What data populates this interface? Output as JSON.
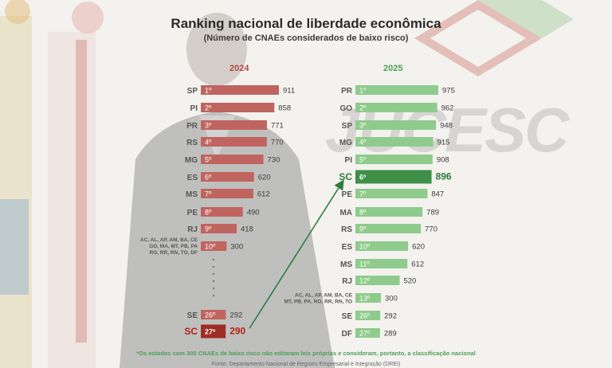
{
  "title": "Ranking nacional de liberdade econômica",
  "subtitle": "(Número de CNAEs considerados de baixo risco)",
  "logo_text": "JUCESC",
  "footnote": "*Os estados com 300 CNAEs de baixo risco não editaram leis próprias e consideram, portanto, a classificação nacional",
  "source": "Fonte: Departamento Nacional de Registro Empresarial e Integração (DREI)",
  "colors": {
    "left_bar": "#c0645f",
    "left_highlight": "#9e2d25",
    "right_bar": "#8fcb8c",
    "right_highlight": "#3f8f47",
    "arrow": "#2e7d3a"
  },
  "chart_data": [
    {
      "type": "bar",
      "year_label": "2024",
      "xlim": [
        0,
        911
      ],
      "rows": [
        {
          "state": "SP",
          "rank": "1º",
          "value": 911
        },
        {
          "state": "PI",
          "rank": "2º",
          "value": 858
        },
        {
          "state": "PR",
          "rank": "3º",
          "value": 771
        },
        {
          "state": "RS",
          "rank": "4º",
          "value": 770
        },
        {
          "state": "MG",
          "rank": "5º",
          "value": 730
        },
        {
          "state": "ES",
          "rank": "6º",
          "value": 620
        },
        {
          "state": "MS",
          "rank": "7º",
          "value": 612
        },
        {
          "state": "PE",
          "rank": "8º",
          "value": 490
        },
        {
          "state": "RJ",
          "rank": "9º",
          "value": 418
        },
        {
          "state": "AC, AL, AP, AM, BA, CE\nGO, MA, MT, PB, PA\nRO, RR, RN, TO, DF",
          "rank": "10º",
          "value": 300,
          "group": true
        },
        {
          "state": "SE",
          "rank": "26º",
          "value": 292
        },
        {
          "state": "SC",
          "rank": "27º",
          "value": 290,
          "highlight": true
        }
      ]
    },
    {
      "type": "bar",
      "year_label": "2025",
      "xlim": [
        0,
        975
      ],
      "rows": [
        {
          "state": "PR",
          "rank": "1º",
          "value": 975
        },
        {
          "state": "GO",
          "rank": "2º",
          "value": 962
        },
        {
          "state": "SP",
          "rank": "3º",
          "value": 948
        },
        {
          "state": "MG",
          "rank": "4º",
          "value": 915
        },
        {
          "state": "PI",
          "rank": "5º",
          "value": 908
        },
        {
          "state": "SC",
          "rank": "6º",
          "value": 896,
          "highlight": true
        },
        {
          "state": "PE",
          "rank": "7º",
          "value": 847
        },
        {
          "state": "MA",
          "rank": "8º",
          "value": 789
        },
        {
          "state": "RS",
          "rank": "9º",
          "value": 770
        },
        {
          "state": "ES",
          "rank": "10º",
          "value": 620
        },
        {
          "state": "MS",
          "rank": "11º",
          "value": 612
        },
        {
          "state": "RJ",
          "rank": "12º",
          "value": 520
        },
        {
          "state": "AC, AL, AP, AM, BA, CE\nMT, PB, PA, RO, RR, RN, TO",
          "rank": "13º",
          "value": 300,
          "group": true
        },
        {
          "state": "SE",
          "rank": "26º",
          "value": 292
        },
        {
          "state": "DF",
          "rank": "27º",
          "value": 289
        }
      ]
    }
  ]
}
